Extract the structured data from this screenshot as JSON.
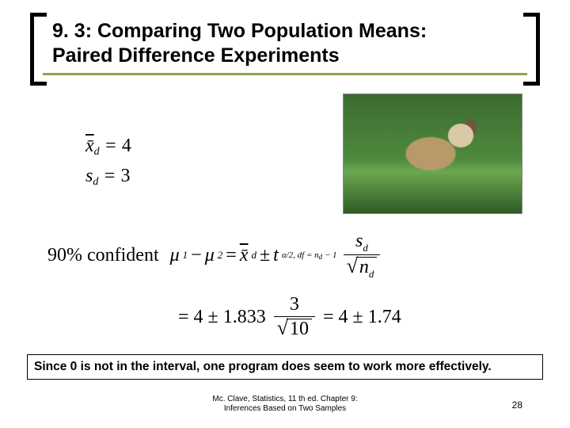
{
  "title": {
    "line1": "9. 3: Comparing Two Population Means:",
    "line2": "Paired Difference Experiments"
  },
  "stats": {
    "xbar_d_label": "x̄",
    "xbar_d_sub": "d",
    "xbar_d_value": "4",
    "s_label": "s",
    "s_sub": "d",
    "s_value": "3"
  },
  "formula": {
    "confidence_prefix": "90% confident",
    "mu1": "μ",
    "sub1": "1",
    "minus": "−",
    "mu2": "μ",
    "sub2": "2",
    "eq": "=",
    "xbar_d": "x̄",
    "xbar_d_sub": "d",
    "pm": "±",
    "t": "t",
    "t_sub": "α/2, df = n",
    "t_sub2_sub": "d",
    "t_sub2_tail": " − 1",
    "frac_num": "s",
    "frac_num_sub": "d",
    "frac_den_sym": "n",
    "frac_den_sub": "d",
    "line2_lead": "= 4 ± 1.833",
    "line2_num": "3",
    "line2_den": "10",
    "line2_tail": "= 4 ± 1.74"
  },
  "conclusion": "Since 0 is not in the interval, one program does seem to work more effectively.",
  "footer": {
    "line1": "Mc. Clave, Statistics, 11 th ed. Chapter 9:",
    "line2": "Inferences Based on Two Samples",
    "page": "28"
  },
  "colors": {
    "accent": "#9aa04a",
    "text": "#000000",
    "bg": "#ffffff"
  }
}
